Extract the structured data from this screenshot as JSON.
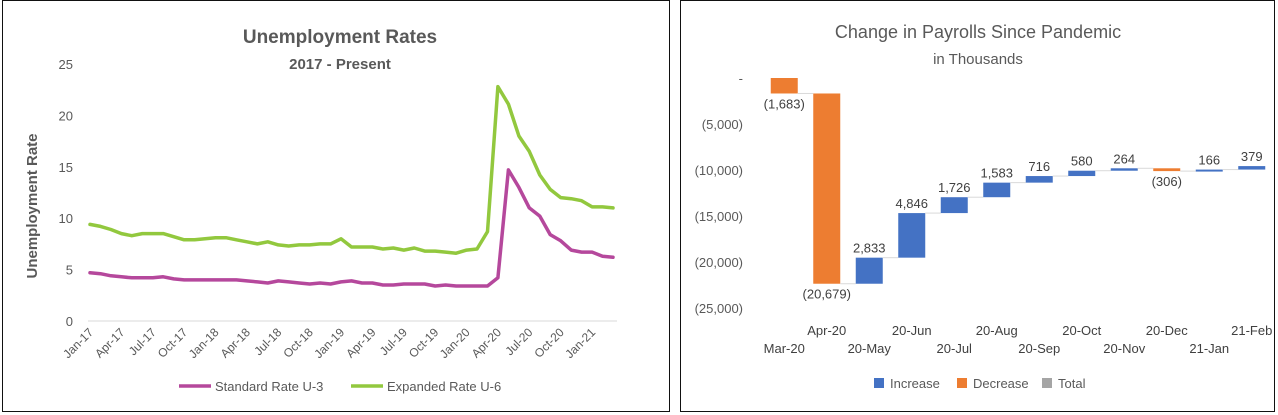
{
  "chart_data": [
    {
      "type": "line",
      "title": "Unemployment Rates",
      "subtitle": "2017 - Present",
      "ylabel": "Unemployment Rate",
      "xlabel": "",
      "ylim": [
        0,
        25
      ],
      "yticks": [
        "0",
        "5",
        "10",
        "15",
        "20",
        "25"
      ],
      "xtick_labels": [
        "Jan-17",
        "Apr-17",
        "Jul-17",
        "Oct-17",
        "Jan-18",
        "Apr-18",
        "Jul-18",
        "Oct-18",
        "Jan-19",
        "Apr-19",
        "Jul-19",
        "Oct-19",
        "Jan-20",
        "Apr-20",
        "Jul-20",
        "Oct-20",
        "Jan-21"
      ],
      "x_start": "Jan-17",
      "x": [
        "Jan-17",
        "Feb-17",
        "Mar-17",
        "Apr-17",
        "May-17",
        "Jun-17",
        "Jul-17",
        "Aug-17",
        "Sep-17",
        "Oct-17",
        "Nov-17",
        "Dec-17",
        "Jan-18",
        "Feb-18",
        "Mar-18",
        "Apr-18",
        "May-18",
        "Jun-18",
        "Jul-18",
        "Aug-18",
        "Sep-18",
        "Oct-18",
        "Nov-18",
        "Dec-18",
        "Jan-19",
        "Feb-19",
        "Mar-19",
        "Apr-19",
        "May-19",
        "Jun-19",
        "Jul-19",
        "Aug-19",
        "Sep-19",
        "Oct-19",
        "Nov-19",
        "Dec-19",
        "Jan-20",
        "Feb-20",
        "Mar-20",
        "Apr-20",
        "May-20",
        "Jun-20",
        "Jul-20",
        "Aug-20",
        "Sep-20",
        "Oct-20",
        "Nov-20",
        "Dec-20",
        "Jan-21",
        "Feb-21",
        "Mar-21"
      ],
      "legend_position": "bottom",
      "grid": false,
      "series": [
        {
          "name": "Standard Rate U-3",
          "color": "#b5489c",
          "values": [
            4.7,
            4.6,
            4.4,
            4.3,
            4.2,
            4.2,
            4.2,
            4.3,
            4.1,
            4.0,
            4.0,
            4.0,
            4.0,
            4.0,
            4.0,
            3.9,
            3.8,
            3.7,
            3.9,
            3.8,
            3.7,
            3.6,
            3.7,
            3.6,
            3.8,
            3.9,
            3.7,
            3.7,
            3.5,
            3.5,
            3.6,
            3.6,
            3.6,
            3.4,
            3.5,
            3.4,
            3.4,
            3.4,
            3.4,
            4.2,
            14.7,
            13.0,
            11.0,
            10.2,
            8.4,
            7.8,
            6.9,
            6.7,
            6.7,
            6.3,
            6.2
          ]
        },
        {
          "name": "Expanded Rate U-6",
          "color": "#92c83e",
          "values": [
            9.4,
            9.2,
            8.9,
            8.5,
            8.3,
            8.5,
            8.5,
            8.5,
            8.2,
            7.9,
            7.9,
            8.0,
            8.1,
            8.1,
            7.9,
            7.7,
            7.5,
            7.7,
            7.4,
            7.3,
            7.4,
            7.4,
            7.5,
            7.5,
            8.0,
            7.2,
            7.2,
            7.2,
            7.0,
            7.1,
            6.9,
            7.1,
            6.8,
            6.8,
            6.7,
            6.6,
            6.9,
            7.0,
            8.7,
            22.8,
            21.1,
            18.0,
            16.5,
            14.2,
            12.8,
            12.0,
            11.9,
            11.7,
            11.1,
            11.1,
            11.0
          ]
        }
      ]
    },
    {
      "type": "bar",
      "subtype": "waterfall",
      "title": "Change in Payrolls Since Pandemic",
      "subtitle": "in Thousands",
      "ylim": [
        -25000,
        0
      ],
      "yticks": [
        "-",
        "(5,000)",
        "(10,000)",
        "(15,000)",
        "(20,000)",
        "(25,000)"
      ],
      "categories": [
        "Mar-20",
        "Apr-20",
        "20-May",
        "20-Jun",
        "20-Jul",
        "20-Aug",
        "20-Sep",
        "20-Oct",
        "20-Nov",
        "20-Dec",
        "21-Jan",
        "21-Feb"
      ],
      "values": [
        -1683,
        -20679,
        2833,
        4846,
        1726,
        1583,
        716,
        580,
        264,
        -306,
        166,
        379
      ],
      "data_labels": [
        "(1,683)",
        "(20,679)",
        "2,833",
        "4,846",
        "1,726",
        "1,583",
        "716",
        "580",
        "264",
        "(306)",
        "166",
        "379"
      ],
      "legend_position": "bottom",
      "grid": false,
      "legend": [
        {
          "name": "Increase",
          "color": "#4472c4"
        },
        {
          "name": "Decrease",
          "color": "#ed7d31"
        },
        {
          "name": "Total",
          "color": "#a5a5a5"
        }
      ]
    }
  ]
}
